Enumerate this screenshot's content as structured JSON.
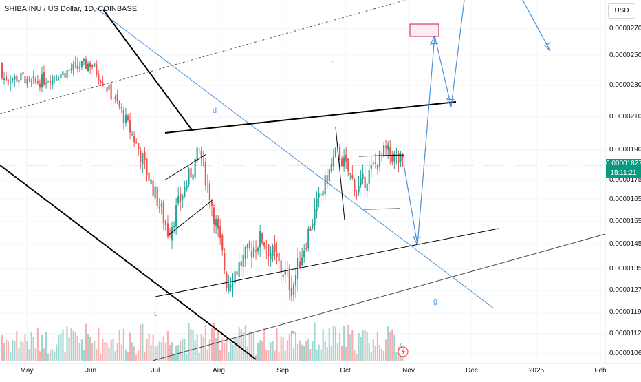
{
  "header": {
    "title": "SHIBA INU / US Dollar, 1D, COINBASE",
    "currency_button": "USD"
  },
  "price_label": {
    "price": "0.00001827",
    "countdown": "15:11:21"
  },
  "colors": {
    "up": "#26a69a",
    "down": "#ef5350",
    "line_blue": "#4a90d9",
    "line_black": "#000000",
    "box_red": "#c2185b"
  },
  "annotations": [
    "c",
    "d",
    "e",
    "f",
    "g"
  ],
  "chart_data": {
    "type": "candlestick",
    "symbol": "SHIBA INU / US Dollar",
    "interval": "1D",
    "exchange": "COINBASE",
    "y_ticks": [
      "0.00002700",
      "0.00002500",
      "0.00002300",
      "0.00002100",
      "0.00001900",
      "0.00001750",
      "0.00001650",
      "0.00001550",
      "0.00001450",
      "0.00001350",
      "0.00001270",
      "0.00001190",
      "0.00001120",
      "0.00001060"
    ],
    "x_ticks": [
      "May",
      "Jun",
      "Jul",
      "Aug",
      "Sep",
      "Oct",
      "Nov",
      "Dec",
      "2025",
      "Feb"
    ],
    "last_price": 1.827e-05,
    "approx_close_path": [
      {
        "date": "2024-05-01",
        "close": 2.3e-05
      },
      {
        "date": "2024-06-01",
        "close": 2.45e-05
      },
      {
        "date": "2024-06-15",
        "close": 2.15e-05
      },
      {
        "date": "2024-07-05",
        "close": 1.5e-05
      },
      {
        "date": "2024-07-20",
        "close": 1.9e-05
      },
      {
        "date": "2024-08-05",
        "close": 1.3e-05
      },
      {
        "date": "2024-08-25",
        "close": 1.48e-05
      },
      {
        "date": "2024-09-06",
        "close": 1.28e-05
      },
      {
        "date": "2024-09-28",
        "close": 1.9e-05
      },
      {
        "date": "2024-10-10",
        "close": 1.7e-05
      },
      {
        "date": "2024-10-22",
        "close": 1.9e-05
      },
      {
        "date": "2024-10-28",
        "close": 1.83e-05
      }
    ]
  }
}
